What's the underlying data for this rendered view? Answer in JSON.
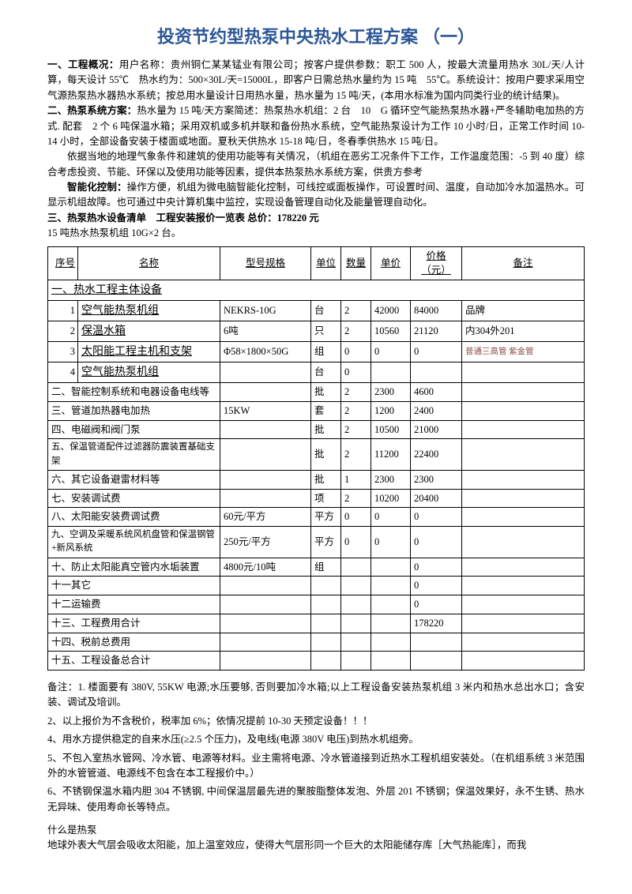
{
  "title": "投资节约型热泵中央热水工程方案 （一）",
  "para1_label": "一、工程概况：",
  "para1": "用户名称：贵州铜仁某某锰业有限公司；按客户提供参数：职工 500 人，按最大流量用热水 30L/天/人计算，每天设计 55℃　热水约为：500×30L/天=15000L，即客户日需总热水量约为 15 吨　55℃。系统设计：按用户要求采用空气源热泵热水器热水系统；按总用水量设计日用热水量，热水量为 15 吨/天，(本用水标准为国内同类行业的统计结果)。",
  "para2_label": "二、热泵系统方案：",
  "para2": "热水量为 15 吨/天方案简述：热泵热水机组：2 台　10　G 循环空气能热泵热水器+严冬辅助电加热的方式. 配套　2 个 6 吨保温水箱；采用双机或多机并联和备份热水系统，空气能热泵设计为工作 10 小时/日，正常工作时间 10-14 小时，全部设备安装于楼面或地面。夏秋天供热水 15-18 吨/日，冬春季供热水 15 吨/日。",
  "para3": "依据当地的地理气象条件和建筑的使用功能等有关情况，（机组在恶劣工况条件下工作，工作温度范围：-5 到 40 度）综合考虑投资、节能、环保以及使用功能等因素，提供本热泵热水系统方案，供贵方参考",
  "para4_label": "智能化控制：",
  "para4": "操作方便，机组为微电脑智能化控制，可线控或面板操作，可设置时间、温度，自动加冷水加温热水。可显示机组故障。也可通过中央计算机集中监控，实现设备管理自动化及能量管理自动化。",
  "para5": "三、热泵热水设备清单　工程安装报价一览表 总价：178220 元",
  "para6": "15 吨热水热泵机组 10G×2 台。",
  "headers": {
    "seq": "序号",
    "name": "名称",
    "model": "型号规格",
    "unit": "单位",
    "qty": "数量",
    "price": "单价",
    "total": "价格（元）",
    "note": "备注"
  },
  "rows": [
    {
      "type": "section",
      "seq": "一、",
      "name": "热水工程主体设备"
    },
    {
      "seq": "1",
      "name": "空气能热泵机组",
      "model": "NEKRS-10G",
      "unit": "台",
      "qty": "2",
      "price": "42000",
      "total": "84000",
      "note": "品牌"
    },
    {
      "seq": "2",
      "name": "保温水箱",
      "model": "6吨",
      "unit": "只",
      "qty": "2",
      "price": "10560",
      "total": "21120",
      "note": "内304外201"
    },
    {
      "seq": "3",
      "name": "太阳能工程主机和支架",
      "model": "Φ58×1800×50G",
      "unit": "组",
      "qty": "0",
      "price": "0",
      "total": "0",
      "note": "普通三高管 紫金管",
      "small": true
    },
    {
      "seq": "4",
      "name": "空气能热泵机组",
      "model": "",
      "unit": "台",
      "qty": "0",
      "price": "",
      "total": "",
      "note": ""
    },
    {
      "type": "merge",
      "seq": "二、",
      "name": "智能控制系统和电器设备电线等",
      "model": "",
      "unit": "批",
      "qty": "2",
      "price": "2300",
      "total": "4600",
      "note": ""
    },
    {
      "type": "merge",
      "seq": "三、",
      "name": "管道加热器电加热",
      "model": "15KW",
      "unit": "套",
      "qty": "2",
      "price": "1200",
      "total": "2400",
      "note": ""
    },
    {
      "type": "merge",
      "seq": "四、",
      "name": "电磁阀和阀门泵",
      "model": "",
      "unit": "批",
      "qty": "2",
      "price": "10500",
      "total": "21000",
      "note": ""
    },
    {
      "type": "merge",
      "seq": "五、",
      "name": "保温管道配件过滤器防震装置基础支架",
      "model": "",
      "unit": "批",
      "qty": "2",
      "price": "11200",
      "total": "22400",
      "note": ""
    },
    {
      "type": "merge",
      "seq": "六、",
      "name": "其它设备避雷材料等",
      "model": "",
      "unit": "批",
      "qty": "1",
      "price": "2300",
      "total": "2300",
      "note": ""
    },
    {
      "type": "merge",
      "seq": "七、",
      "name": "安装调试费",
      "model": "",
      "unit": "项",
      "qty": "2",
      "price": "10200",
      "total": "20400",
      "note": ""
    },
    {
      "type": "merge",
      "seq": "八、",
      "name": "太阳能安装费调试费",
      "model": "60元/平方",
      "unit": "平方",
      "qty": "0",
      "price": "0",
      "total": "0",
      "note": ""
    },
    {
      "type": "merge",
      "seq": "九、",
      "name": "空调及采暖系统风机盘管和保温钢管+新风系统",
      "model": "250元/平方",
      "unit": "平方",
      "qty": "0",
      "price": "0",
      "total": "0",
      "note": ""
    },
    {
      "type": "merge",
      "seq": "十、",
      "name": "防止太阳能真空管内水垢装置",
      "model": "4800元/10吨",
      "unit": "组",
      "qty": "",
      "price": "",
      "total": "0",
      "note": ""
    },
    {
      "type": "merge",
      "seq": "十一",
      "name": "其它",
      "model": "",
      "unit": "",
      "qty": "",
      "price": "",
      "total": "0",
      "note": ""
    },
    {
      "type": "merge",
      "seq": "十二",
      "name": "运输费",
      "model": "",
      "unit": "",
      "qty": "",
      "price": "",
      "total": "0",
      "note": ""
    },
    {
      "type": "merge",
      "seq": "十三、",
      "name": "工程费用合计",
      "model": "",
      "unit": "",
      "qty": "",
      "price": "",
      "total": "178220",
      "note": ""
    },
    {
      "type": "merge",
      "seq": "十四、",
      "name": "税前总费用",
      "model": "",
      "unit": "",
      "qty": "",
      "price": "",
      "total": "",
      "note": ""
    },
    {
      "type": "merge",
      "seq": "十五、",
      "name": "工程设备总合计",
      "model": "",
      "unit": "",
      "qty": "",
      "price": "",
      "total": "",
      "note": ""
    }
  ],
  "notes": [
    "备注：1. 楼面要有 380V, 55KW 电源;水压要够, 否则要加冷水箱;以上工程设备安装热泵机组 3 米内和热水总出水口；含安装、调试及培训。",
    "2、以上报价为不含税价，税率加 6%；依情况提前 10-30 天预定设备！！！",
    "4、用水方提供稳定的自来水压(≥2.5 个压力)，及电线(电源 380V 电压)到热水机组旁。",
    "5、不包入室热水管网、冷水管、电源等材料。业主需将电源、冷水管道接到近热水工程机组安装处。（在机组系统 3 米范围外的水管管道、电源线不包含在本工程报价中。）",
    "6、不锈钢保温水箱内胆 304 不锈钢, 中间保温层最先进的聚胺脂整体发泡、外层 201 不锈钢；保温效果好，永不生锈、热水无异味、使用寿命长等特点。"
  ],
  "footer_title": "什么是热泵",
  "footer_text": "地球外表大气层会吸收太阳能，加上温室效应，使得大气层形同一个巨大的太阳能储存库［大气热能库］，而我"
}
